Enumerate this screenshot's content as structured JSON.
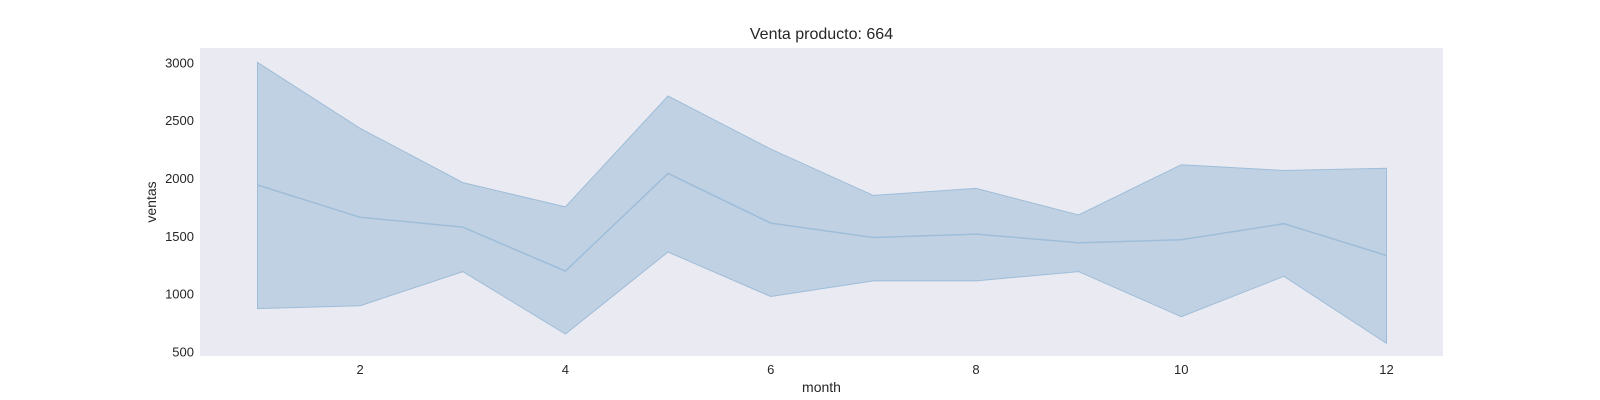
{
  "chart_data": {
    "type": "line",
    "title": "Venta producto: 664",
    "xlabel": "month",
    "ylabel": "ventas",
    "x": [
      1,
      2,
      3,
      4,
      5,
      6,
      7,
      8,
      9,
      10,
      11,
      12
    ],
    "series": [
      {
        "values": [
          1940,
          1660,
          1575,
          1195,
          2040,
          1610,
          1485,
          1515,
          1440,
          1465,
          1605,
          1330
        ],
        "band_upper": [
          3000,
          2430,
          1960,
          1750,
          2710,
          2250,
          1850,
          1910,
          1680,
          2115,
          2065,
          2085
        ],
        "band_lower": [
          870,
          895,
          1190,
          650,
          1360,
          975,
          1110,
          1110,
          1190,
          800,
          1150,
          570
        ]
      }
    ],
    "xticks": [
      2,
      4,
      6,
      8,
      10,
      12
    ],
    "yticks": [
      500,
      1000,
      1500,
      2000,
      2500,
      3000
    ],
    "xlim": [
      0.44,
      12.55
    ],
    "ylim": [
      460,
      3125
    ],
    "grid": false,
    "colors": {
      "background": "#eaeaf2",
      "line": "#9ebdd8",
      "band": "#b6cbe0"
    }
  }
}
